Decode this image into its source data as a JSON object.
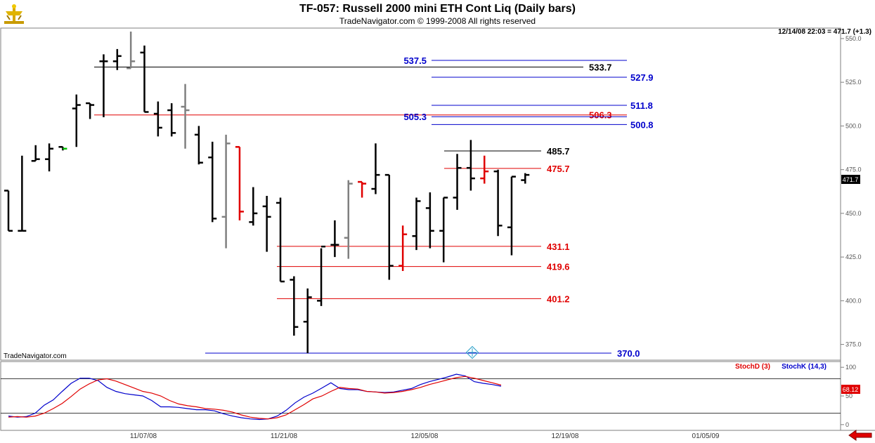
{
  "header": {
    "title": "TF-057:  Russell 2000 mini ETH Cont Liq  (Daily bars)",
    "subtitle": "TradeNavigator.com © 1999-2008 All rights reserved"
  },
  "icons": {
    "logo": "trade-navigator-logo-icon",
    "scroll": "red-left-arrow-icon",
    "crosshair": "crosshair-marker-icon"
  },
  "colors": {
    "background": "#ffffff",
    "panel_border": "#7f7f7f",
    "grid": "#000000",
    "up_black": "#000000",
    "gray_bar": "#808080",
    "red_bar": "#e00000",
    "green_tick": "#00c000",
    "blue_line": "#0000cc",
    "red_line": "#e00000"
  },
  "chart_data": [
    {
      "type": "ohlc",
      "timestamp_label": "12/14/08 22:03 = 471.7 (+1.3)",
      "watermark": "TradeNavigator.com",
      "last_price_label": "471.7",
      "ylim": [
        366,
        556
      ],
      "y_ticks": [
        375.0,
        400.0,
        425.0,
        450.0,
        475.0,
        500.0,
        525.0,
        550.0
      ],
      "x_tick_labels": [
        "11/07/08",
        "11/21/08",
        "12/05/08",
        "12/19/08",
        "01/05/09"
      ],
      "bars": [
        {
          "o": 463,
          "h": 463,
          "l": 440,
          "c": 440,
          "color": "black"
        },
        {
          "o": 440,
          "h": 483,
          "l": 440,
          "c": 440,
          "color": "black"
        },
        {
          "o": 480,
          "h": 489,
          "l": 480,
          "c": 481,
          "color": "black"
        },
        {
          "o": 481,
          "h": 490,
          "l": 474,
          "c": 487,
          "color": "black"
        },
        {
          "o": 488,
          "h": 488,
          "l": 486,
          "c": 487,
          "color": "green"
        },
        {
          "o": 510,
          "h": 518,
          "l": 488,
          "c": 512,
          "color": "black"
        },
        {
          "o": 513,
          "h": 513,
          "l": 504,
          "c": 512,
          "color": "black"
        },
        {
          "o": 537,
          "h": 541,
          "l": 505,
          "c": 537,
          "color": "black"
        },
        {
          "o": 537,
          "h": 544,
          "l": 532,
          "c": 540,
          "color": "black"
        },
        {
          "o": 533,
          "h": 554,
          "l": 533,
          "c": 537,
          "color": "gray"
        },
        {
          "o": 542,
          "h": 546,
          "l": 508,
          "c": 508,
          "color": "black"
        },
        {
          "o": 507,
          "h": 514,
          "l": 494,
          "c": 499,
          "color": "black"
        },
        {
          "o": 509,
          "h": 513,
          "l": 494,
          "c": 496,
          "color": "black"
        },
        {
          "o": 511,
          "h": 524,
          "l": 487,
          "c": 509,
          "color": "gray"
        },
        {
          "o": 495,
          "h": 500,
          "l": 478,
          "c": 479,
          "color": "black"
        },
        {
          "o": 482,
          "h": 491,
          "l": 445,
          "c": 447,
          "color": "black"
        },
        {
          "o": 448,
          "h": 495,
          "l": 430,
          "c": 490,
          "color": "gray"
        },
        {
          "o": 488,
          "h": 488,
          "l": 446,
          "c": 451,
          "color": "red"
        },
        {
          "o": 445,
          "h": 465,
          "l": 443,
          "c": 450,
          "color": "black"
        },
        {
          "o": 454,
          "h": 460,
          "l": 428,
          "c": 448,
          "color": "black"
        },
        {
          "o": 456,
          "h": 459,
          "l": 411,
          "c": 411,
          "color": "black"
        },
        {
          "o": 412,
          "h": 414,
          "l": 380,
          "c": 385,
          "color": "black"
        },
        {
          "o": 388,
          "h": 407,
          "l": 370,
          "c": 402,
          "color": "black"
        },
        {
          "o": 400,
          "h": 430,
          "l": 397,
          "c": 431,
          "color": "black"
        },
        {
          "o": 432,
          "h": 446,
          "l": 425,
          "c": 432,
          "color": "black"
        },
        {
          "o": 436,
          "h": 469,
          "l": 424,
          "c": 467,
          "color": "gray"
        },
        {
          "o": 468,
          "h": 468,
          "l": 459,
          "c": 467,
          "color": "red"
        },
        {
          "o": 464,
          "h": 490,
          "l": 461,
          "c": 472,
          "color": "black"
        },
        {
          "o": 472,
          "h": 472,
          "l": 412,
          "c": 420,
          "color": "black"
        },
        {
          "o": 420,
          "h": 443,
          "l": 417,
          "c": 438,
          "color": "red"
        },
        {
          "o": 437,
          "h": 459,
          "l": 429,
          "c": 457,
          "color": "black"
        },
        {
          "o": 453,
          "h": 462,
          "l": 430,
          "c": 440,
          "color": "black"
        },
        {
          "o": 440,
          "h": 459,
          "l": 422,
          "c": 459,
          "color": "black"
        },
        {
          "o": 459,
          "h": 484,
          "l": 452,
          "c": 476,
          "color": "black"
        },
        {
          "o": 476,
          "h": 492,
          "l": 463,
          "c": 470,
          "color": "black"
        },
        {
          "o": 470,
          "h": 483,
          "l": 467,
          "c": 474,
          "color": "red"
        },
        {
          "o": 474,
          "h": 475,
          "l": 437,
          "c": 443,
          "color": "black"
        },
        {
          "o": 442,
          "h": 471,
          "l": 426,
          "c": 471,
          "color": "black"
        },
        {
          "o": 469,
          "h": 473,
          "l": 467,
          "c": 472,
          "color": "black"
        }
      ],
      "levels": [
        {
          "label": "537.5",
          "value": 537.5,
          "color": "blue"
        },
        {
          "label": "533.7",
          "value": 533.7,
          "color": "black"
        },
        {
          "label": "527.9",
          "value": 527.9,
          "color": "blue"
        },
        {
          "label": "511.8",
          "value": 511.8,
          "color": "blue"
        },
        {
          "label": "506.3",
          "value": 506.3,
          "color": "red"
        },
        {
          "label": "505.3",
          "value": 505.3,
          "color": "blue"
        },
        {
          "label": "500.8",
          "value": 500.8,
          "color": "blue"
        },
        {
          "label": "485.7",
          "value": 485.7,
          "color": "black"
        },
        {
          "label": "475.7",
          "value": 475.7,
          "color": "red"
        },
        {
          "label": "431.1",
          "value": 431.1,
          "color": "red"
        },
        {
          "label": "419.6",
          "value": 419.6,
          "color": "red"
        },
        {
          "label": "401.2",
          "value": 401.2,
          "color": "red"
        },
        {
          "label": "370.0",
          "value": 370.0,
          "color": "blue"
        }
      ]
    },
    {
      "type": "line",
      "legend": [
        {
          "name": "StochD (3)",
          "color": "red"
        },
        {
          "name": "StochK (14,3)",
          "color": "blue"
        }
      ],
      "last_value_label": "68.12",
      "ylim": [
        -10,
        110
      ],
      "y_ticks": [
        0,
        50,
        100
      ],
      "reference_lines": [
        20,
        80
      ],
      "series": [
        {
          "name": "StochK (14,3)",
          "values": [
            15,
            13,
            14,
            20,
            34,
            43,
            58,
            72,
            81,
            81,
            77,
            65,
            58,
            54,
            52,
            50,
            42,
            31,
            31,
            30,
            28,
            26,
            26,
            24,
            19,
            15,
            12,
            10,
            9,
            10,
            15,
            25,
            38,
            48,
            55,
            64,
            73,
            63,
            61,
            61,
            58,
            57,
            56,
            57,
            60,
            63,
            70,
            75,
            79,
            83,
            88,
            85,
            75,
            72,
            70,
            67
          ]
        },
        {
          "name": "StochD (3)",
          "values": [
            13,
            14,
            13,
            15,
            20,
            28,
            37,
            49,
            62,
            71,
            78,
            80,
            76,
            70,
            64,
            58,
            55,
            50,
            42,
            36,
            33,
            31,
            28,
            27,
            25,
            22,
            17,
            13,
            11,
            10,
            12,
            17,
            26,
            35,
            45,
            50,
            58,
            65,
            63,
            62,
            58,
            57,
            55,
            56,
            58,
            61,
            65,
            70,
            74,
            78,
            82,
            84,
            81,
            77,
            73,
            69
          ]
        }
      ]
    }
  ]
}
